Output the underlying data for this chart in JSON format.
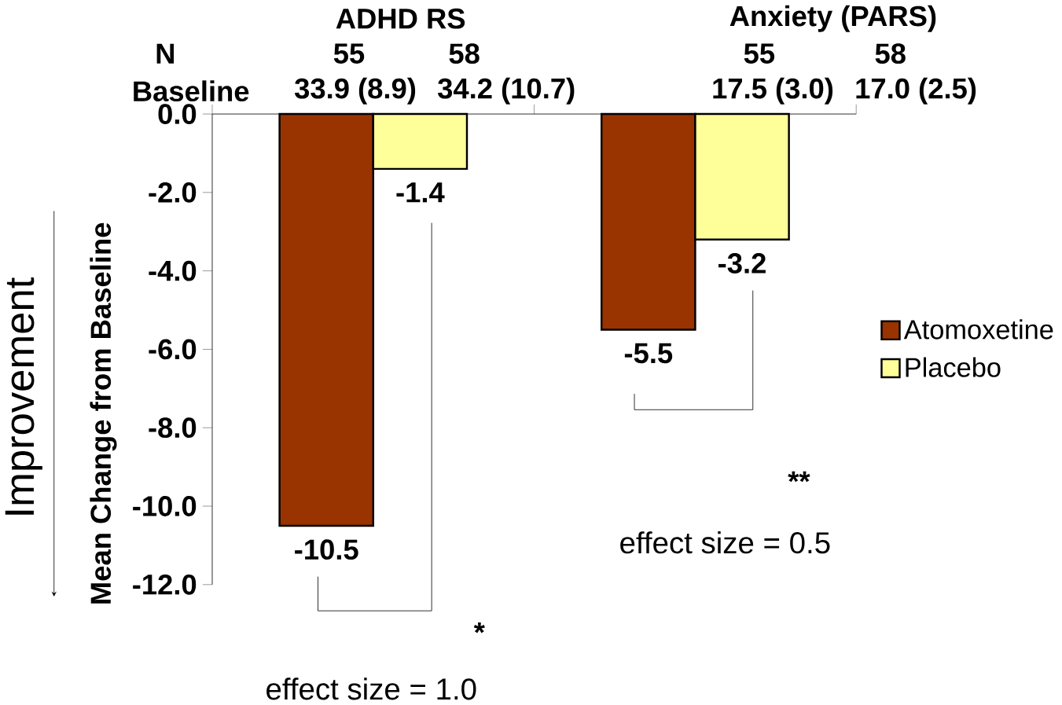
{
  "chart_data": {
    "type": "bar",
    "categories": [
      "ADHD RS",
      "Anxiety (PARS)"
    ],
    "series": [
      {
        "name": "Atomoxetine",
        "color": "#993300",
        "values": [
          -10.5,
          -5.5
        ]
      },
      {
        "name": "Placebo",
        "color": "#ffff99",
        "values": [
          -1.4,
          -3.2
        ]
      }
    ],
    "ylabel": "Mean Change from Baseline",
    "ylim": [
      -12,
      0
    ],
    "yticks": [
      {
        "value": 0,
        "label": "0.0"
      },
      {
        "value": -2,
        "label": "-2.0"
      },
      {
        "value": -4,
        "label": "-4.0"
      },
      {
        "value": -6,
        "label": "-6.0"
      },
      {
        "value": -8,
        "label": "-8.0"
      },
      {
        "value": -10,
        "label": "-10.0"
      },
      {
        "value": -12,
        "label": "-12.0"
      }
    ],
    "data_labels": true,
    "legend": "right",
    "annotations": [
      "N",
      "55",
      "58",
      "55",
      "58",
      "Baseline",
      "33.9 (8.9)",
      "34.2 (10.7)",
      "17.5 (3.0)",
      "17.0 (2.5)",
      "*",
      "effect size = 1.0",
      "**",
      "effect size = 0.5",
      "Improvement"
    ]
  }
}
